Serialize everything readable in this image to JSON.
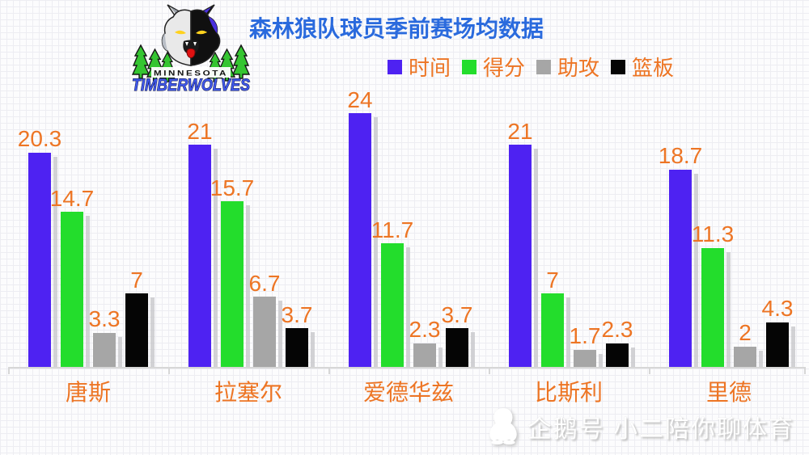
{
  "header": {
    "title": "森林狼队球员季前赛场均数据",
    "logo": {
      "top_text": "MINNESOTA",
      "bottom_text": "TIMBERWOLVES"
    }
  },
  "chart_data": {
    "type": "bar",
    "title": "森林狼队球员季前赛场均数据",
    "categories": [
      "唐斯",
      "拉塞尔",
      "爱德华兹",
      "比斯利",
      "里德"
    ],
    "series": [
      {
        "name": "时间",
        "color": "#4e22f2",
        "values": [
          20.3,
          21,
          24,
          21,
          18.7
        ]
      },
      {
        "name": "得分",
        "color": "#23dd2c",
        "values": [
          14.7,
          15.7,
          11.7,
          7,
          11.3
        ]
      },
      {
        "name": "助攻",
        "color": "#a6a6a6",
        "values": [
          3.3,
          6.7,
          2.3,
          1.7,
          2
        ]
      },
      {
        "name": "篮板",
        "color": "#050505",
        "values": [
          7,
          3.7,
          3.7,
          2.3,
          4.3
        ]
      }
    ],
    "ylim": [
      0,
      24
    ],
    "legend_position": "top",
    "grid": false,
    "value_labels": true,
    "value_label_color": "#ed7524",
    "category_label_color": "#ed7524",
    "title_color": "#2a6add"
  },
  "watermark": {
    "text": "企鹅号 小二陪你聊体育",
    "icon": "penguin-icon"
  }
}
